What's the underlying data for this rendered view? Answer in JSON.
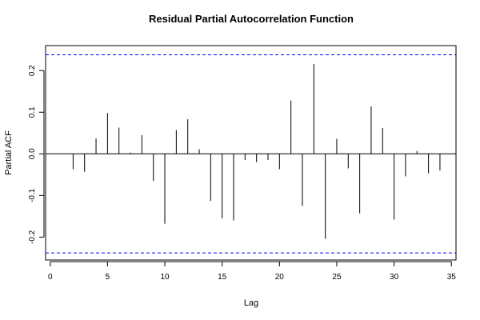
{
  "chart_data": {
    "type": "bar",
    "title": "Residual Partial Autocorrelation Function",
    "xlabel": "Lag",
    "ylabel": "Partial ACF",
    "xlim": [
      -0.4,
      35.4
    ],
    "ylim": [
      -0.255,
      0.26
    ],
    "x_ticks": [
      0,
      5,
      10,
      15,
      20,
      25,
      30,
      35
    ],
    "y_ticks": [
      -0.2,
      -0.1,
      0.0,
      0.1,
      0.2
    ],
    "y_tick_labels": [
      "-0.2",
      "-0.1",
      "0.0",
      "0.1",
      "0.2"
    ],
    "x": [
      1,
      2,
      3,
      4,
      5,
      6,
      7,
      8,
      9,
      10,
      11,
      12,
      13,
      14,
      15,
      16,
      17,
      18,
      19,
      20,
      21,
      22,
      23,
      24,
      25,
      26,
      27,
      28,
      29,
      30,
      31,
      32,
      33,
      34
    ],
    "values": [
      0.0,
      -0.037,
      -0.043,
      0.037,
      0.098,
      0.063,
      0.003,
      0.045,
      -0.065,
      -0.168,
      0.057,
      0.083,
      0.011,
      -0.113,
      -0.155,
      -0.16,
      -0.015,
      -0.02,
      -0.015,
      -0.037,
      0.128,
      -0.125,
      0.216,
      -0.204,
      0.036,
      -0.035,
      -0.143,
      0.114,
      0.062,
      -0.158,
      -0.054,
      0.007,
      -0.047,
      -0.04
    ],
    "confidence_bounds": [
      0.238,
      -0.238
    ],
    "zero_line": true,
    "colors": {
      "bars": "#000000",
      "bounds": "#0000ff",
      "axes": "#000000"
    },
    "grid": false,
    "legend": "none"
  }
}
